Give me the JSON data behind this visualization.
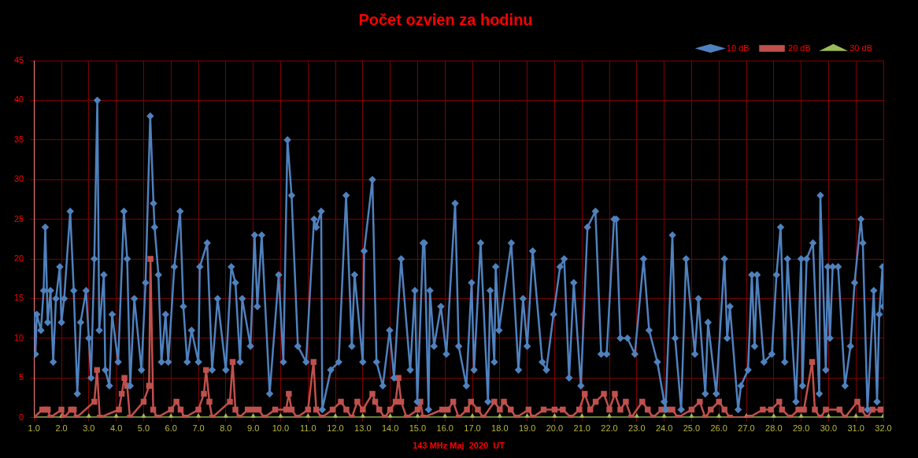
{
  "chart_data": {
    "type": "line",
    "title": "Počet ozvien za hodinu",
    "xlabel": "143 MHz Maj  2020  UT",
    "xlim": [
      1,
      32
    ],
    "xticks": [
      {
        "value": 1,
        "label": "1.0"
      },
      {
        "value": 2,
        "label": "2.0"
      },
      {
        "value": 3,
        "label": "3.0"
      },
      {
        "value": 4,
        "label": "4.0"
      },
      {
        "value": 5,
        "label": "5.0"
      },
      {
        "value": 6,
        "label": "6.0"
      },
      {
        "value": 7,
        "label": "7.0"
      },
      {
        "value": 8,
        "label": "8.0"
      },
      {
        "value": 9,
        "label": "9.0"
      },
      {
        "value": 10,
        "label": "10.0"
      },
      {
        "value": 11,
        "label": "11.0"
      },
      {
        "value": 12,
        "label": "12.0"
      },
      {
        "value": 13,
        "label": "13.0"
      },
      {
        "value": 14,
        "label": "14.0"
      },
      {
        "value": 15,
        "label": "15.0"
      },
      {
        "value": 16,
        "label": "16.0"
      },
      {
        "value": 17,
        "label": "17.0"
      },
      {
        "value": 18,
        "label": "18.0"
      },
      {
        "value": 19,
        "label": "19.0"
      },
      {
        "value": 20,
        "label": "20.0"
      },
      {
        "value": 21,
        "label": "21.0"
      },
      {
        "value": 22,
        "label": "22.0"
      },
      {
        "value": 23,
        "label": "23.0"
      },
      {
        "value": 24,
        "label": "24.0"
      },
      {
        "value": 25,
        "label": "25.0"
      },
      {
        "value": 26,
        "label": "26.0"
      },
      {
        "value": 27,
        "label": "27.0"
      },
      {
        "value": 28,
        "label": "28.0"
      },
      {
        "value": 29,
        "label": "29.0"
      },
      {
        "value": 30,
        "label": "30.0"
      },
      {
        "value": 31,
        "label": "31.0"
      },
      {
        "value": 32,
        "label": "32.0"
      }
    ],
    "ylim": [
      0,
      45
    ],
    "yticks": [
      0,
      5,
      10,
      15,
      20,
      25,
      30,
      35,
      40,
      45
    ],
    "grid": true,
    "legend": "top right",
    "line_style": "solid",
    "series": [
      {
        "name": "10 dB",
        "color": "#4f81bd",
        "marker": "diamond",
        "x": [
          1.0,
          1.05,
          1.1,
          1.25,
          1.35,
          1.41,
          1.5,
          1.6,
          1.7,
          1.8,
          1.94,
          2.0,
          2.1,
          2.32,
          2.45,
          2.58,
          2.7,
          2.9,
          3.0,
          3.08,
          3.2,
          3.31,
          3.38,
          3.55,
          3.6,
          3.75,
          3.85,
          4.07,
          4.28,
          4.4,
          4.51,
          4.66,
          4.92,
          5.07,
          5.24,
          5.36,
          5.4,
          5.54,
          5.65,
          5.8,
          5.9,
          6.12,
          6.33,
          6.45,
          6.59,
          6.75,
          7.0,
          7.05,
          7.32,
          7.5,
          7.7,
          8.0,
          8.2,
          8.35,
          8.52,
          8.6,
          8.9,
          9.05,
          9.15,
          9.31,
          9.6,
          9.93,
          10.1,
          10.25,
          10.4,
          10.63,
          10.93,
          11.22,
          11.3,
          11.48,
          11.52,
          11.83,
          12.12,
          12.39,
          12.6,
          12.7,
          13.0,
          13.05,
          13.35,
          13.5,
          13.73,
          13.98,
          14.14,
          14.4,
          14.73,
          14.9,
          14.99,
          15.2,
          15.25,
          15.4,
          15.45,
          15.6,
          15.85,
          16.05,
          16.37,
          16.5,
          16.78,
          16.97,
          17.06,
          17.3,
          17.57,
          17.65,
          17.8,
          17.85,
          17.97,
          18.42,
          18.68,
          18.85,
          19.0,
          19.2,
          19.55,
          19.7,
          19.96,
          20.2,
          20.35,
          20.53,
          20.7,
          20.96,
          21.2,
          21.49,
          21.7,
          21.9,
          22.17,
          22.25,
          22.4,
          22.66,
          22.93,
          23.25,
          23.45,
          23.75,
          24.0,
          24.05,
          24.3,
          24.4,
          24.62,
          24.8,
          25.12,
          25.25,
          25.5,
          25.6,
          25.9,
          26.2,
          26.3,
          26.4,
          26.7,
          26.8,
          27.06,
          27.2,
          27.3,
          27.39,
          27.64,
          27.93,
          28.1,
          28.25,
          28.4,
          28.5,
          28.81,
          29.0,
          29.05,
          29.2,
          29.43,
          29.66,
          29.7,
          29.9,
          29.97,
          30.05,
          30.15,
          30.35,
          30.6,
          30.8,
          30.95,
          31.18,
          31.25,
          31.42,
          31.65,
          31.77,
          31.85,
          31.97,
          32.0
        ],
        "values": [
          13,
          8,
          13,
          11,
          16,
          24,
          12,
          16,
          7,
          15,
          19,
          12,
          15,
          26,
          16,
          3,
          12,
          16,
          10,
          5,
          20,
          40,
          11,
          18,
          6,
          4,
          13,
          7,
          26,
          20,
          4,
          15,
          6,
          17,
          38,
          27,
          24,
          18,
          7,
          13,
          7,
          19,
          26,
          14,
          7,
          11,
          7,
          19,
          22,
          6,
          15,
          6,
          19,
          17,
          7,
          15,
          9,
          23,
          14,
          23,
          3,
          18,
          7,
          35,
          28,
          9,
          7,
          25,
          24,
          26,
          1,
          6,
          7,
          28,
          9,
          18,
          7,
          21,
          30,
          7,
          4,
          11,
          5,
          20,
          6,
          16,
          2,
          22,
          22,
          1,
          16,
          9,
          14,
          8,
          27,
          9,
          4,
          17,
          6,
          22,
          2,
          16,
          7,
          19,
          11,
          22,
          6,
          15,
          9,
          21,
          7,
          6,
          13,
          19,
          20,
          5,
          17,
          4,
          24,
          26,
          8,
          8,
          25,
          25,
          10,
          10,
          8,
          20,
          11,
          7,
          2,
          1,
          23,
          10,
          1,
          20,
          8,
          15,
          3,
          12,
          3,
          20,
          10,
          14,
          1,
          4,
          6,
          18,
          9,
          18,
          7,
          8,
          18,
          24,
          7,
          20,
          2,
          20,
          4,
          20,
          22,
          3,
          28,
          6,
          19,
          10,
          19,
          19,
          4,
          9,
          17,
          25,
          22,
          1,
          16,
          2,
          13,
          19,
          14
        ]
      },
      {
        "name": "20 dB",
        "color": "#c0504d",
        "marker": "square",
        "x": [
          1.0,
          1.3,
          1.4,
          1.5,
          1.6,
          2.0,
          2.1,
          2.35,
          2.45,
          2.55,
          3.2,
          3.3,
          3.4,
          4.1,
          4.2,
          4.3,
          4.4,
          4.5,
          5.0,
          5.2,
          5.25,
          5.35,
          5.5,
          6.0,
          6.2,
          6.35,
          6.5,
          7.0,
          7.2,
          7.28,
          7.4,
          7.5,
          8.15,
          8.25,
          8.35,
          8.5,
          8.8,
          9.0,
          9.2,
          9.4,
          9.8,
          10.2,
          10.3,
          10.4,
          10.6,
          11.0,
          11.2,
          11.3,
          11.5,
          11.9,
          12.2,
          12.4,
          12.6,
          12.8,
          13.0,
          13.35,
          13.45,
          13.6,
          13.8,
          14.0,
          14.2,
          14.3,
          14.4,
          14.6,
          15.0,
          15.1,
          15.2,
          15.9,
          16.1,
          16.3,
          16.5,
          16.8,
          16.95,
          17.2,
          17.4,
          17.8,
          18.0,
          18.15,
          18.4,
          18.6,
          19.05,
          19.2,
          19.6,
          20.0,
          20.3,
          20.6,
          20.9,
          21.1,
          21.3,
          21.5,
          21.8,
          22.0,
          22.2,
          22.4,
          22.6,
          22.8,
          23.2,
          23.4,
          23.6,
          23.9,
          24.1,
          24.3,
          24.5,
          25.0,
          25.3,
          25.5,
          25.7,
          26.0,
          26.2,
          26.4,
          27.1,
          27.6,
          27.9,
          28.2,
          28.3,
          28.6,
          28.9,
          29.1,
          29.4,
          29.5,
          29.7,
          29.9,
          30.4,
          30.6,
          31.05,
          31.2,
          31.4,
          31.6,
          31.9,
          32.0
        ],
        "values": [
          0,
          1,
          1,
          1,
          0,
          1,
          0,
          1,
          1,
          0,
          2,
          6,
          0,
          1,
          3,
          5,
          4,
          0,
          2,
          4,
          20,
          1,
          0,
          1,
          2,
          1,
          0,
          1,
          3,
          6,
          2,
          0,
          2,
          7,
          1,
          0,
          1,
          1,
          1,
          0,
          1,
          1,
          3,
          1,
          0,
          1,
          7,
          1,
          0,
          1,
          2,
          1,
          0,
          2,
          1,
          3,
          2,
          1,
          0,
          1,
          2,
          5,
          2,
          0,
          1,
          2,
          0,
          1,
          1,
          2,
          0,
          1,
          2,
          1,
          0,
          2,
          1,
          2,
          1,
          0,
          1,
          0,
          1,
          1,
          1,
          0,
          1,
          3,
          1,
          2,
          3,
          1,
          3,
          1,
          2,
          0,
          2,
          1,
          0,
          1,
          1,
          1,
          0,
          1,
          2,
          0,
          1,
          2,
          1,
          0,
          0,
          1,
          1,
          2,
          1,
          0,
          1,
          1,
          7,
          1,
          0,
          1,
          1,
          0,
          2,
          1,
          0,
          1,
          1,
          1
        ]
      },
      {
        "name": "30 dB",
        "color": "#9bbb59",
        "marker": "triangle",
        "x": [
          1,
          2,
          3,
          4,
          5,
          6,
          7,
          8,
          9,
          10,
          11,
          12,
          13,
          14,
          15,
          16,
          17,
          18,
          19,
          20,
          21,
          22,
          23,
          24,
          25,
          26,
          27,
          28,
          29,
          30,
          31,
          32
        ],
        "values": [
          0,
          0,
          0,
          0,
          0,
          0,
          0,
          0,
          0,
          0,
          0,
          0,
          0,
          0,
          0,
          0,
          0,
          0,
          0,
          0,
          0,
          0,
          0,
          0,
          0,
          0,
          0,
          0,
          0,
          0,
          0,
          0
        ]
      }
    ]
  }
}
